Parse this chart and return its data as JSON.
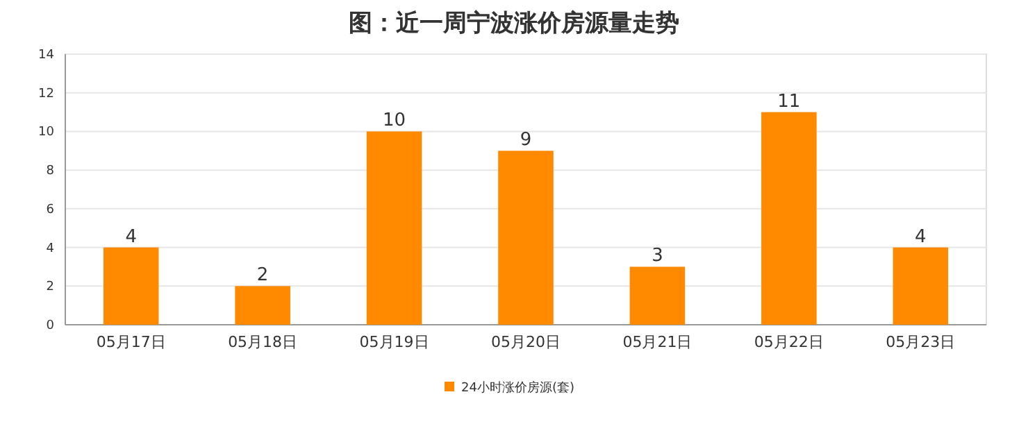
{
  "chart_data": {
    "type": "bar",
    "title": "图：近一周宁波涨价房源量走势",
    "categories": [
      "05月17日",
      "05月18日",
      "05月19日",
      "05月20日",
      "05月21日",
      "05月22日",
      "05月23日"
    ],
    "series": [
      {
        "name": "24小时涨价房源(套)",
        "color": "#ff8a00",
        "values": [
          4,
          2,
          10,
          9,
          3,
          11,
          4
        ]
      }
    ],
    "ylim": [
      0,
      14
    ],
    "yticks": [
      0,
      2,
      4,
      6,
      8,
      10,
      12,
      14
    ],
    "grid": "y",
    "legend": "bottom",
    "data_labels": true
  }
}
